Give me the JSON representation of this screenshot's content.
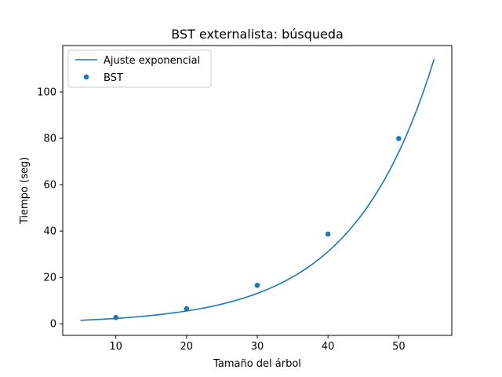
{
  "chart_data": {
    "type": "scatter",
    "title": "BST externalista: búsqueda",
    "xlabel": "Tamaño del árbol",
    "ylabel": "Tiempo (seg)",
    "xlim": [
      2.5,
      57.5
    ],
    "ylim": [
      -5,
      120
    ],
    "xticks": [
      10,
      20,
      30,
      40,
      50
    ],
    "yticks": [
      0,
      20,
      40,
      60,
      80,
      100
    ],
    "grid": false,
    "legend_position": "top-left",
    "series": [
      {
        "name": "Ajuste exponencial",
        "kind": "line",
        "color": "#1f77b4",
        "x_range": [
          5,
          55
        ],
        "model": {
          "a": 0.975,
          "b": 0.0866
        }
      },
      {
        "name": "BST",
        "kind": "scatter",
        "color": "#1f77b4",
        "x": [
          10,
          20,
          30,
          40,
          50
        ],
        "y": [
          2.7,
          6.5,
          16.6,
          38.7,
          79.9
        ]
      }
    ]
  }
}
